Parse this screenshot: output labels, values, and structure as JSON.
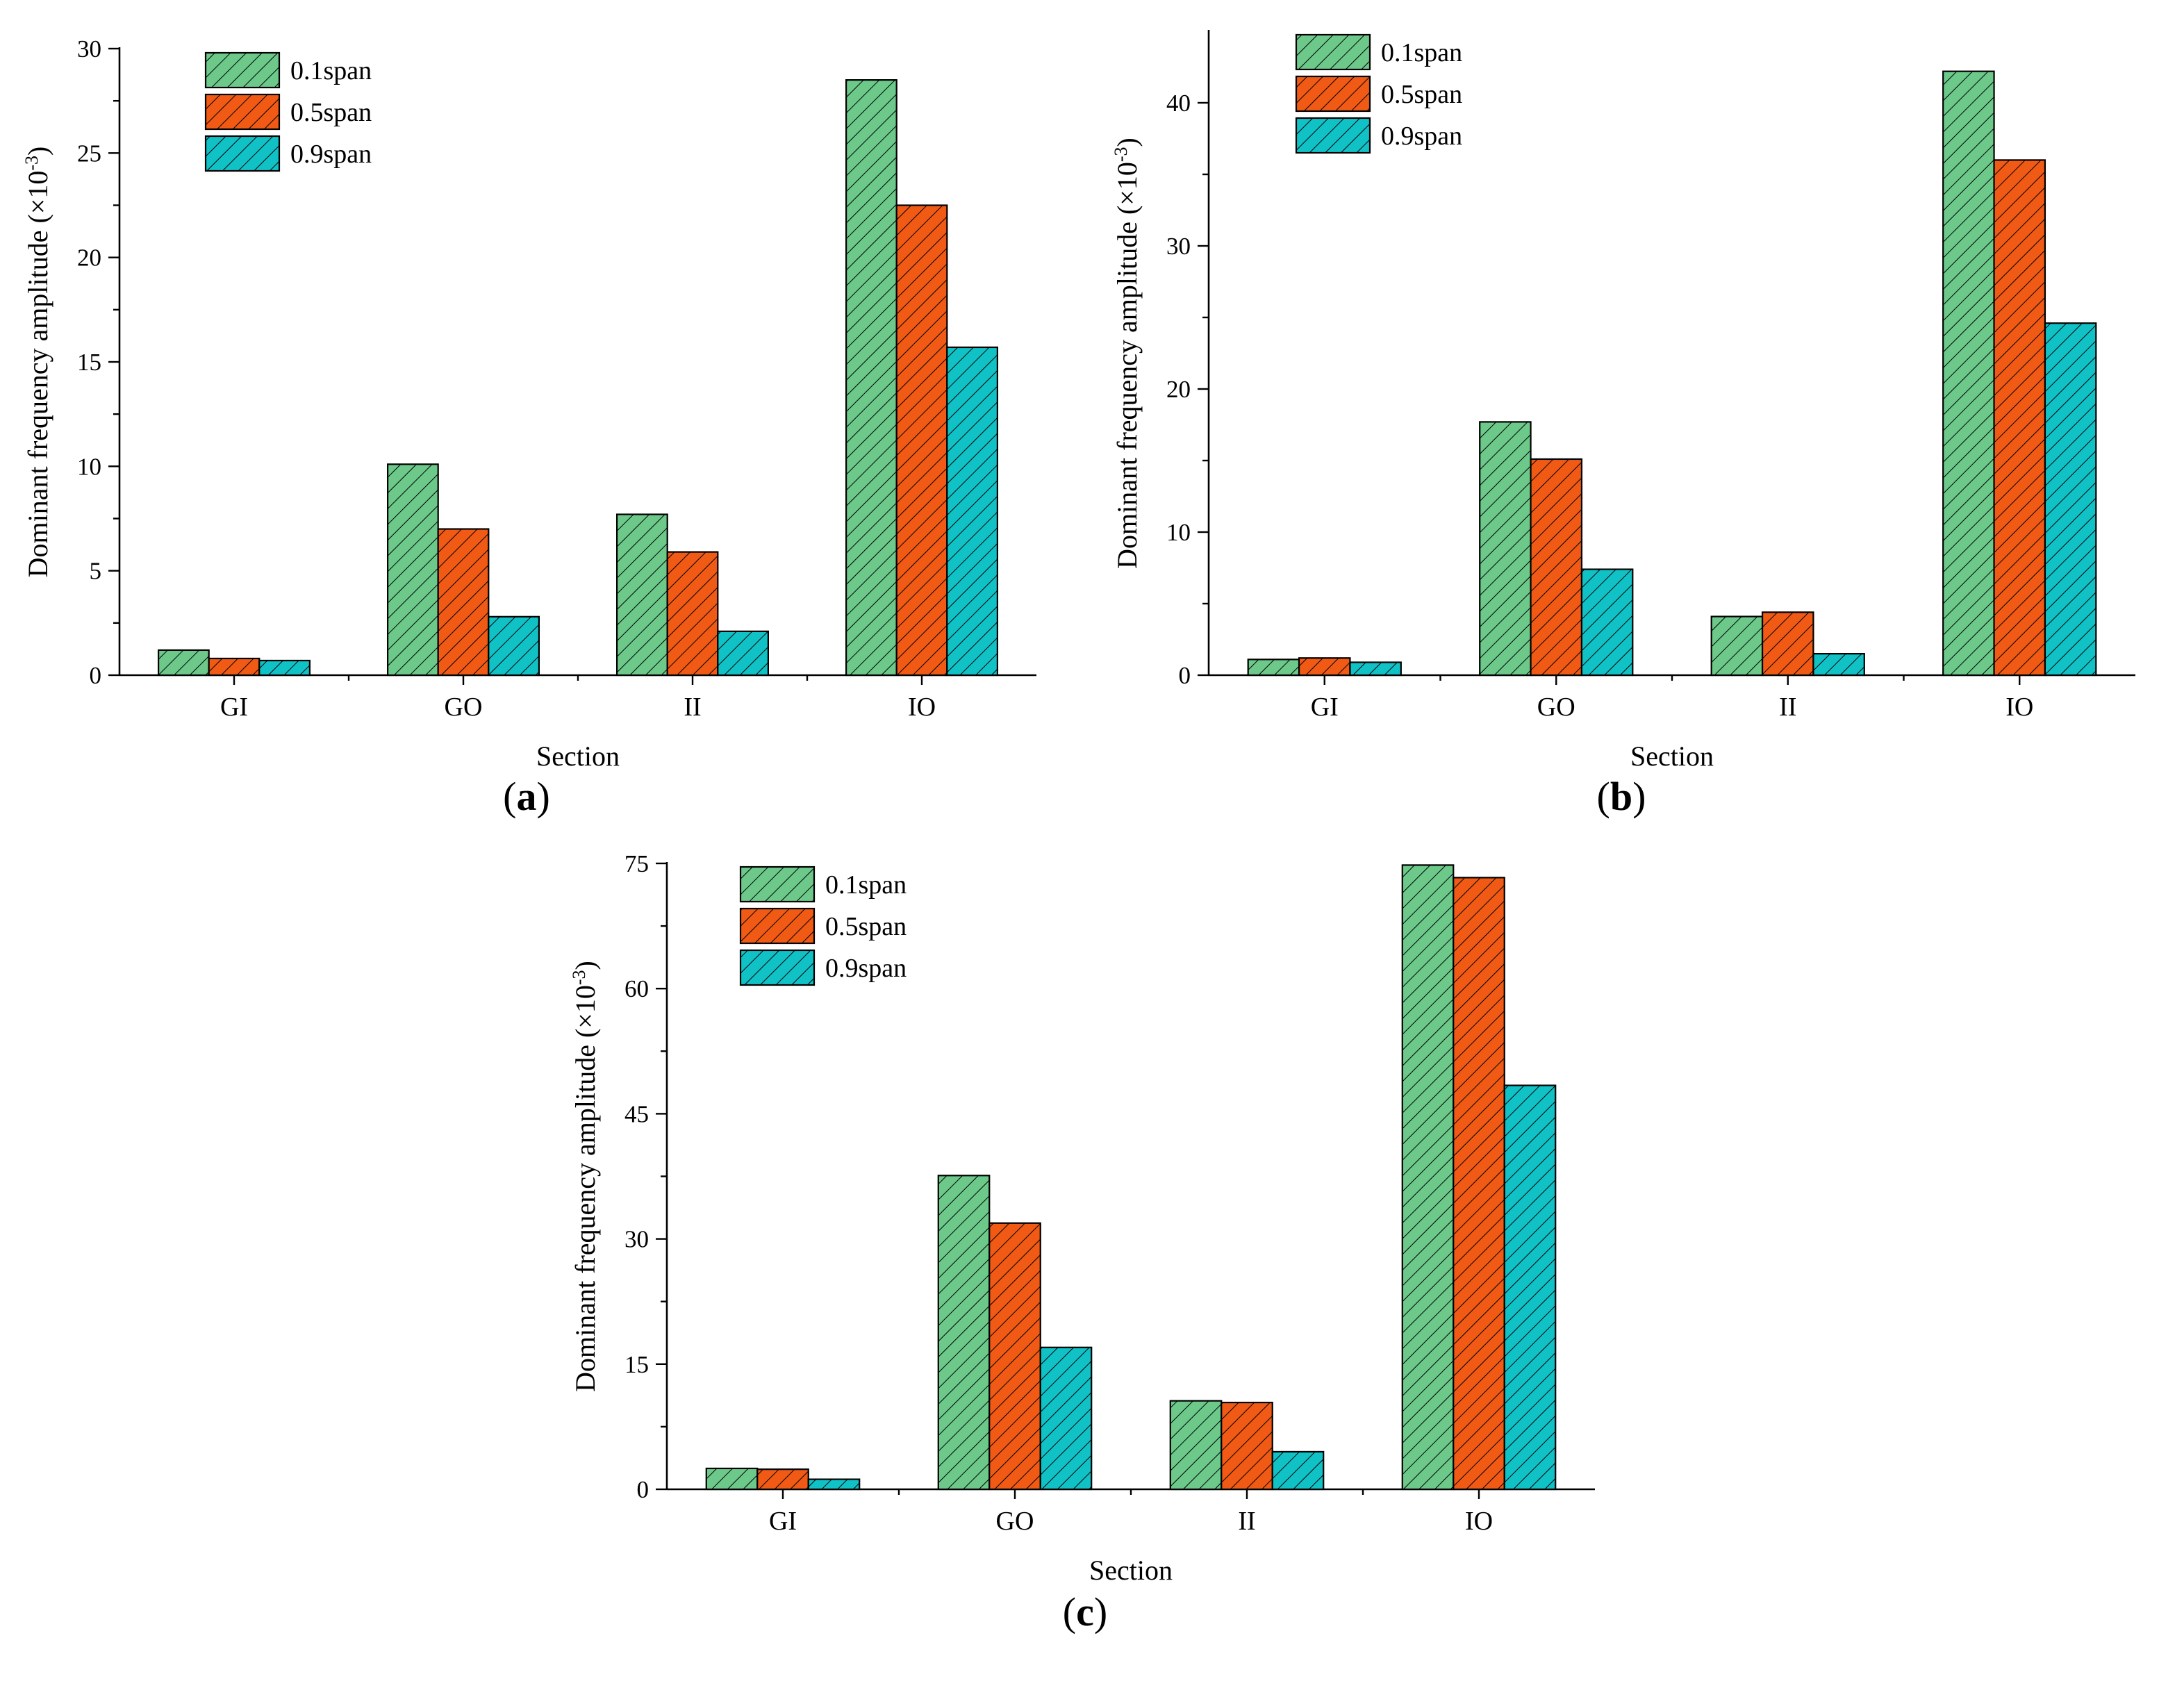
{
  "figure": {
    "series_colors": [
      "#6cc98a",
      "#f05a15",
      "#10c2c6"
    ],
    "hatch": "diagonal-lines"
  },
  "chart_data": [
    {
      "type": "bar",
      "panel_label": "a",
      "categories": [
        "GI",
        "GO",
        "II",
        "IO"
      ],
      "series": [
        {
          "name": "0.1span",
          "values": [
            1.2,
            10.1,
            7.7,
            28.5
          ]
        },
        {
          "name": "0.5span",
          "values": [
            0.8,
            7.0,
            5.9,
            22.5
          ]
        },
        {
          "name": "0.9span",
          "values": [
            0.7,
            2.8,
            2.1,
            15.7
          ]
        }
      ],
      "xlabel": "Section",
      "ylabel_prefix": "Dominant frequency amplitude (×10",
      "ylabel_exponent": "-3",
      "ylabel_suffix": ")",
      "ylim": [
        0,
        30
      ],
      "yticks": [
        0,
        5,
        10,
        15,
        20,
        25,
        30
      ],
      "legend_position": "top-left"
    },
    {
      "type": "bar",
      "panel_label": "b",
      "categories": [
        "GI",
        "GO",
        "II",
        "IO"
      ],
      "series": [
        {
          "name": "0.1span",
          "values": [
            1.1,
            17.7,
            4.1,
            42.2
          ]
        },
        {
          "name": "0.5span",
          "values": [
            1.2,
            15.1,
            4.4,
            36.0
          ]
        },
        {
          "name": "0.9span",
          "values": [
            0.9,
            7.4,
            1.5,
            24.6
          ]
        }
      ],
      "xlabel": "Section",
      "ylabel_prefix": "Dominant frequency amplitude (×10",
      "ylabel_exponent": "-3",
      "ylabel_suffix": ")",
      "ylim": [
        0,
        45
      ],
      "yticks": [
        0,
        10,
        20,
        30,
        40
      ],
      "legend_position": "top-left"
    },
    {
      "type": "bar",
      "panel_label": "c",
      "categories": [
        "GI",
        "GO",
        "II",
        "IO"
      ],
      "series": [
        {
          "name": "0.1span",
          "values": [
            2.5,
            37.6,
            10.6,
            74.8
          ]
        },
        {
          "name": "0.5span",
          "values": [
            2.4,
            31.9,
            10.4,
            73.3
          ]
        },
        {
          "name": "0.9span",
          "values": [
            1.2,
            17.0,
            4.5,
            48.4
          ]
        }
      ],
      "xlabel": "Section",
      "ylabel_prefix": "Dominant frequency amplitude (×10",
      "ylabel_exponent": "-3",
      "ylabel_suffix": ")",
      "ylim": [
        0,
        75
      ],
      "yticks": [
        0,
        15,
        30,
        45,
        60,
        75
      ],
      "legend_position": "top-left"
    }
  ]
}
